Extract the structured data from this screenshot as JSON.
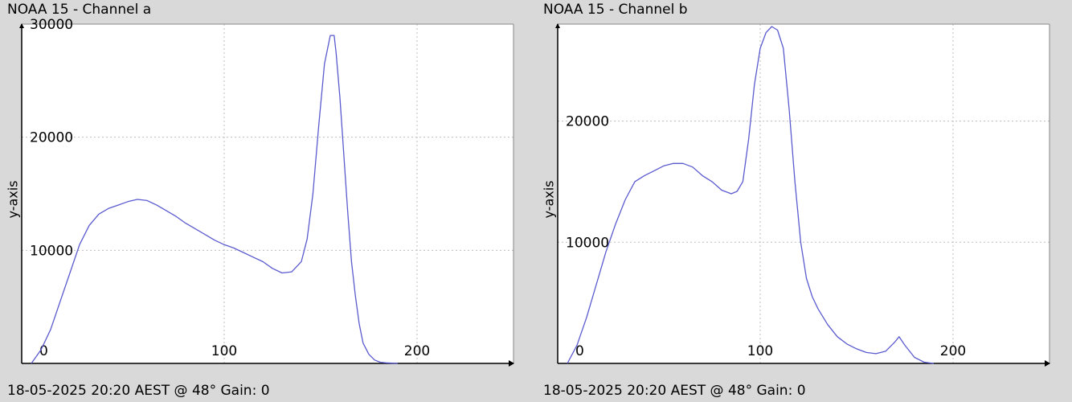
{
  "chart_data": [
    {
      "type": "line",
      "title": "NOAA 15 - Channel a",
      "ylabel": "y-axis",
      "footer": "18-05-2025 20:20 AEST @ 48° Gain: 0",
      "xlim": [
        -5,
        250
      ],
      "ylim": [
        0,
        30000
      ],
      "xticks": [
        0,
        100,
        200
      ],
      "yticks": [
        0,
        10000,
        20000,
        30000
      ],
      "grid": true,
      "line_color": "#5a5acf",
      "series": [
        {
          "x": [
            0,
            5,
            10,
            15,
            20,
            25,
            30,
            35,
            40,
            45,
            50,
            55,
            60,
            65,
            70,
            75,
            80,
            85,
            90,
            95,
            100,
            105,
            110,
            115,
            120,
            125,
            130,
            135,
            140,
            143,
            146,
            149,
            152,
            155,
            157,
            158,
            160,
            162,
            164,
            166,
            168,
            170,
            172,
            175,
            178,
            181,
            184,
            187,
            190
          ],
          "y": [
            0,
            1200,
            3000,
            5500,
            8000,
            10500,
            12200,
            13200,
            13700,
            14000,
            14300,
            14500,
            14400,
            14000,
            13500,
            13000,
            12400,
            11900,
            11400,
            10900,
            10500,
            10200,
            9800,
            9400,
            9000,
            8400,
            8000,
            8100,
            9000,
            11000,
            15000,
            21000,
            26500,
            29000,
            29000,
            27500,
            23500,
            18500,
            13500,
            9000,
            6000,
            3500,
            1800,
            800,
            300,
            100,
            50,
            20,
            0
          ]
        }
      ]
    },
    {
      "type": "line",
      "title": "NOAA 15 - Channel b",
      "ylabel": "y-axis",
      "footer": "18-05-2025 20:20 AEST @ 48° Gain: 0",
      "xlim": [
        -5,
        250
      ],
      "ylim": [
        0,
        28000
      ],
      "xticks": [
        0,
        100,
        200
      ],
      "yticks": [
        0,
        10000,
        20000
      ],
      "grid": true,
      "line_color": "#5a5acf",
      "series": [
        {
          "x": [
            0,
            5,
            10,
            15,
            20,
            25,
            30,
            35,
            40,
            45,
            50,
            55,
            60,
            65,
            70,
            75,
            80,
            85,
            88,
            91,
            94,
            97,
            100,
            103,
            106,
            109,
            112,
            115,
            118,
            121,
            124,
            127,
            130,
            135,
            140,
            145,
            150,
            155,
            160,
            165,
            170,
            172,
            175,
            180,
            185,
            190
          ],
          "y": [
            0,
            1500,
            3800,
            6500,
            9200,
            11500,
            13500,
            15000,
            15500,
            15900,
            16300,
            16500,
            16500,
            16200,
            15500,
            15000,
            14300,
            14000,
            14200,
            15000,
            18500,
            23000,
            26000,
            27300,
            27800,
            27500,
            26000,
            21000,
            15000,
            10000,
            7000,
            5500,
            4500,
            3200,
            2200,
            1600,
            1200,
            900,
            800,
            1000,
            1800,
            2200,
            1500,
            500,
            100,
            0
          ]
        }
      ]
    }
  ]
}
